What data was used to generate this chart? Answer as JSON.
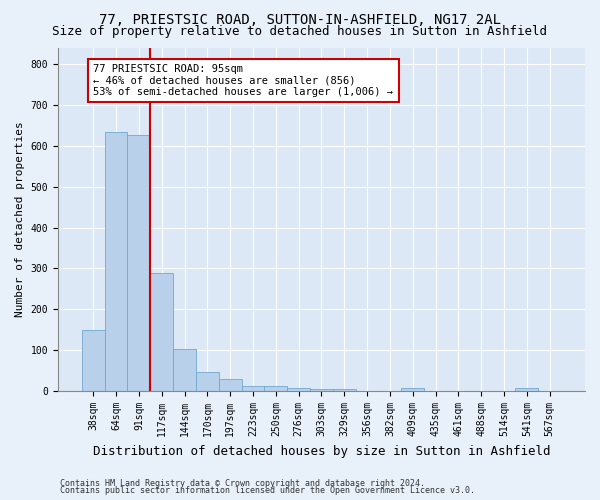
{
  "title_line1": "77, PRIESTSIC ROAD, SUTTON-IN-ASHFIELD, NG17 2AL",
  "title_line2": "Size of property relative to detached houses in Sutton in Ashfield",
  "xlabel": "Distribution of detached houses by size in Sutton in Ashfield",
  "ylabel": "Number of detached properties",
  "footer_line1": "Contains HM Land Registry data © Crown copyright and database right 2024.",
  "footer_line2": "Contains public sector information licensed under the Open Government Licence v3.0.",
  "categories": [
    "38sqm",
    "64sqm",
    "91sqm",
    "117sqm",
    "144sqm",
    "170sqm",
    "197sqm",
    "223sqm",
    "250sqm",
    "276sqm",
    "303sqm",
    "329sqm",
    "356sqm",
    "382sqm",
    "409sqm",
    "435sqm",
    "461sqm",
    "488sqm",
    "514sqm",
    "541sqm",
    "567sqm"
  ],
  "values": [
    150,
    633,
    627,
    289,
    104,
    48,
    30,
    12,
    12,
    8,
    6,
    6,
    0,
    0,
    7,
    0,
    0,
    0,
    0,
    8,
    0
  ],
  "bar_color": "#b8d0ea",
  "bar_edge_color": "#6fa8d0",
  "property_line_index": 2,
  "annotation_text_line1": "77 PRIESTSIC ROAD: 95sqm",
  "annotation_text_line2": "← 46% of detached houses are smaller (856)",
  "annotation_text_line3": "53% of semi-detached houses are larger (1,006) →",
  "annotation_box_facecolor": "#ffffff",
  "annotation_box_edgecolor": "#cc0000",
  "vline_color": "#cc0000",
  "ylim": [
    0,
    840
  ],
  "yticks": [
    0,
    100,
    200,
    300,
    400,
    500,
    600,
    700,
    800
  ],
  "plot_bg_color": "#dce8f5",
  "fig_bg_color": "#e8f0fa",
  "grid_color": "#ffffff",
  "title_fontsize": 10,
  "subtitle_fontsize": 9,
  "ylabel_fontsize": 8,
  "xlabel_fontsize": 9,
  "tick_fontsize": 7,
  "annotation_fontsize": 7.5,
  "footer_fontsize": 6
}
